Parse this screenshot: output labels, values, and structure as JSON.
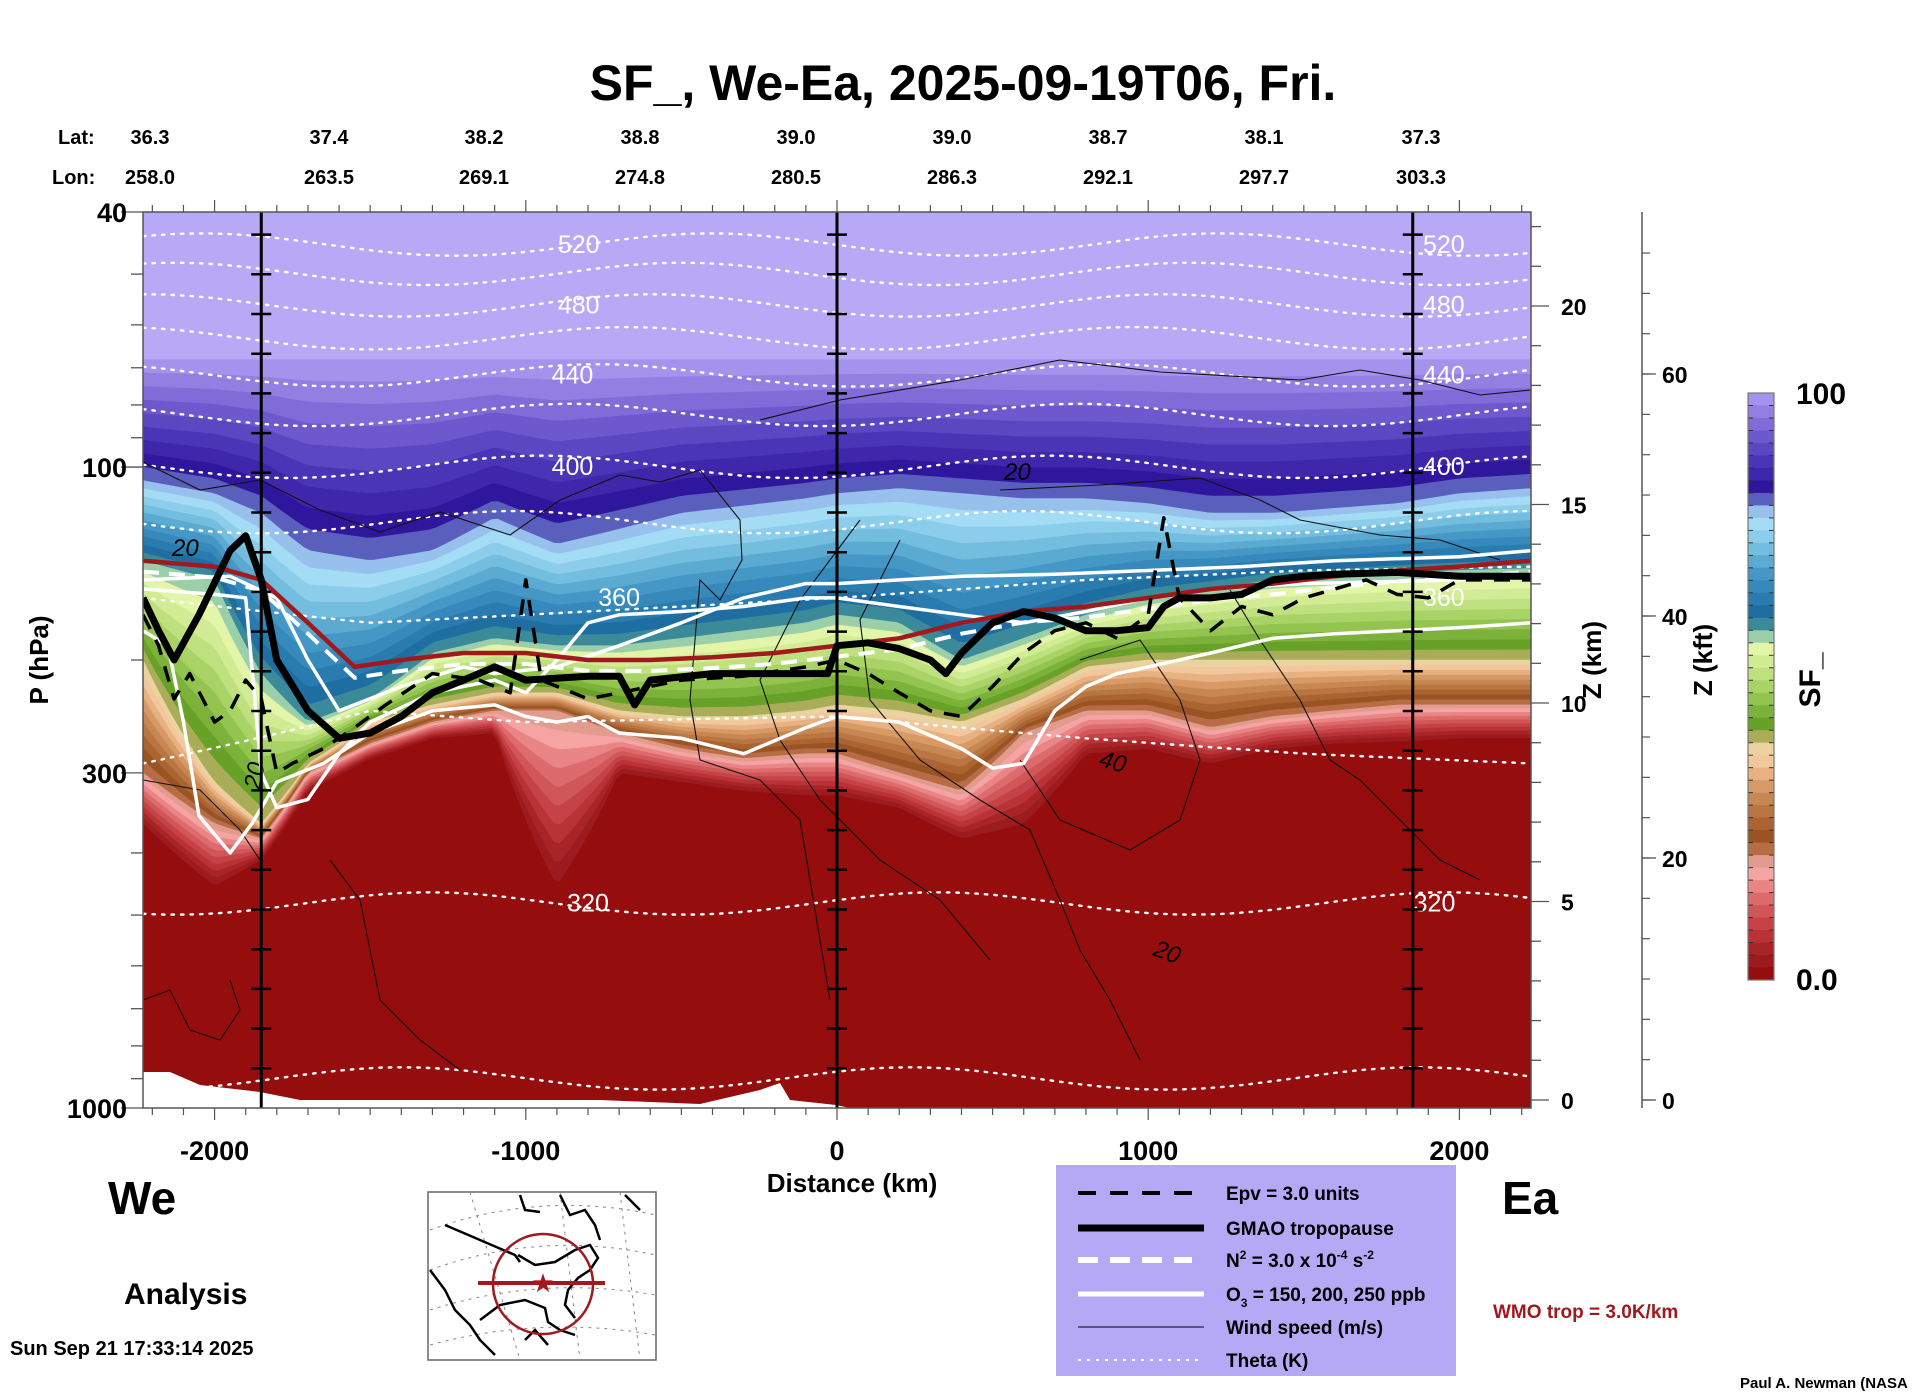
{
  "chart_data": {
    "type": "heatmap",
    "title": "SF_, We-Ea, 2025-09-19T06, Fri.",
    "xlabel": "Distance (km)",
    "ylabel": "P (hPa)",
    "y2label": "Z (km)",
    "y3label": "Z (kft)",
    "xlim": [
      -2230,
      2230
    ],
    "ylim_hpa": [
      1000,
      40
    ],
    "y_scale": "log",
    "x_ticks": [
      -2000,
      -1000,
      0,
      1000,
      2000
    ],
    "y_ticks_hpa": [
      40,
      100,
      300,
      1000
    ],
    "z_km_ticks": [
      0,
      5,
      10,
      15,
      20
    ],
    "z_kft_ticks": [
      0,
      20,
      40,
      60
    ],
    "section_markers_km": [
      -1850,
      0,
      1850
    ],
    "lat_label": "Lat:",
    "lon_label": "Lon:",
    "lat": [
      "36.3",
      "37.4",
      "38.2",
      "38.8",
      "39.0",
      "39.0",
      "38.7",
      "38.1",
      "37.3"
    ],
    "lon": [
      "258.0",
      "263.5",
      "269.1",
      "274.8",
      "280.5",
      "286.3",
      "292.1",
      "297.7",
      "303.3"
    ],
    "colorbar": {
      "label": "SF_",
      "min": 0.0,
      "max": 100,
      "min_label": "0.0",
      "max_label": "100",
      "colors_top_to_bottom": [
        "#a493ec",
        "#917fe2",
        "#7f6cd8",
        "#6d59cd",
        "#5c47c3",
        "#4b35b7",
        "#3e27ab",
        "#2f179d",
        "#5a5fbe",
        "#97c1ec",
        "#a3dcf4",
        "#8ccdeb",
        "#73bddf",
        "#5aaad2",
        "#4598c6",
        "#3689bb",
        "#2a7cb0",
        "#1f6ea2",
        "#3b8a9a",
        "#9bcfaa",
        "#e2f5a8",
        "#d1ec94",
        "#bfe07f",
        "#a9d366",
        "#93c44f",
        "#7cb23a",
        "#68a128",
        "#a9ad58",
        "#ead3a0",
        "#f2c79b",
        "#e7b181",
        "#d79a67",
        "#c78752",
        "#b97542",
        "#aa6432",
        "#9a5424",
        "#b86c46",
        "#e29c8e",
        "#f5a3a3",
        "#ea8586",
        "#dd6a6d",
        "#d05658",
        "#c54346",
        "#b83236",
        "#a92427",
        "#9b1b1e",
        "#960d0e"
      ]
    },
    "field_layers_pressure_hPa": {
      "description": "Approximate SF_ layer boundaries along section (x km → pressure hPa)",
      "x": [
        -2230,
        -2000,
        -1850,
        -1700,
        -1500,
        -1300,
        -1100,
        -900,
        -700,
        -500,
        -300,
        -100,
        0,
        200,
        400,
        600,
        800,
        1000,
        1200,
        1400,
        1600,
        1800,
        2000,
        2230
      ],
      "top_of_purple": [
        68,
        68,
        68,
        68,
        68,
        68,
        68,
        68,
        68,
        68,
        68,
        68,
        68,
        68,
        68,
        68,
        68,
        68,
        68,
        68,
        68,
        68,
        68,
        68
      ],
      "bottom_of_dark_blue": [
        105,
        110,
        118,
        135,
        140,
        135,
        120,
        132,
        125,
        118,
        115,
        112,
        110,
        108,
        110,
        112,
        112,
        114,
        118,
        118,
        116,
        114,
        110,
        108
      ],
      "bottom_of_teal": [
        140,
        150,
        210,
        250,
        230,
        195,
        185,
        190,
        190,
        185,
        180,
        175,
        170,
        175,
        200,
        185,
        170,
        160,
        155,
        150,
        148,
        146,
        145,
        144
      ],
      "bottom_of_green": [
        200,
        310,
        360,
        290,
        250,
        235,
        225,
        225,
        240,
        245,
        245,
        240,
        235,
        240,
        250,
        230,
        205,
        200,
        200,
        200,
        200,
        200,
        200,
        200
      ],
      "bottom_of_tan": [
        300,
        360,
        380,
        300,
        270,
        250,
        240,
        240,
        260,
        275,
        285,
        280,
        280,
        300,
        320,
        260,
        240,
        240,
        255,
        245,
        240,
        235,
        235,
        235
      ],
      "bottom_of_pink": [
        360,
        450,
        410,
        320,
        285,
        265,
        260,
        450,
        300,
        310,
        320,
        325,
        325,
        340,
        380,
        360,
        280,
        275,
        290,
        275,
        270,
        268,
        265,
        265
      ]
    },
    "theta_isentropes_K": [
      {
        "value": 520,
        "labeled": true,
        "p_hPa": 45
      },
      {
        "value": 500,
        "labeled": false,
        "p_hPa": 50
      },
      {
        "value": 480,
        "labeled": true,
        "p_hPa": 56
      },
      {
        "value": 460,
        "labeled": false,
        "p_hPa": 63
      },
      {
        "value": 440,
        "labeled": true,
        "p_hPa": 72
      },
      {
        "value": 420,
        "labeled": false,
        "p_hPa": 83
      },
      {
        "value": 400,
        "labeled": true,
        "p_hPa": 100
      },
      {
        "value": 380,
        "labeled": false,
        "p_hPa": 122
      },
      {
        "value": 360,
        "labeled": true,
        "p_hPa": 160
      },
      {
        "value": 340,
        "labeled": false,
        "p_hPa": 275
      },
      {
        "value": 320,
        "labeled": true,
        "p_hPa": 480
      },
      {
        "value": 300,
        "labeled": false,
        "p_hPa": 900
      }
    ],
    "wind_speed_labels_ms": [
      20,
      20,
      40,
      20,
      20
    ],
    "legend": {
      "placement": "bottom-center",
      "entries": [
        {
          "label": "Epv = 3.0 units",
          "style": "black-dashed"
        },
        {
          "label": "GMAO tropopause",
          "style": "black-thick"
        },
        {
          "label": "N² = 3.0 x 10⁻⁴ s⁻²",
          "style": "white-dashed"
        },
        {
          "label": "O₃ = 150, 200, 250 ppb",
          "style": "white-solid"
        },
        {
          "label": "Wind speed (m/s)",
          "style": "black-thin"
        },
        {
          "label": "Theta (K)",
          "style": "white-dotted"
        }
      ],
      "background": "#b5a8f5"
    },
    "wmo_trop_label": "WMO trop = 3.0K/km",
    "wmo_trop_color": "#a0191d",
    "west_label": "We",
    "east_label": "Ea"
  },
  "footer": {
    "mode": "Analysis",
    "timestamp": "Sun Sep 21 17:33:14 2025",
    "credit": "Paul A. Newman (NASA"
  },
  "legend_text": {
    "epv": "Epv = 3.0 units",
    "gmao": "GMAO tropopause",
    "n2_base": "N",
    "n2_sup": "2",
    "n2_mid": " = 3.0 x 10",
    "n2_exp": "-4",
    "n2_unit": " s",
    "n2_unit_exp": "-2",
    "o3_base": "O",
    "o3_sub": "3",
    "o3_rest": " = 150, 200, 250 ppb",
    "wind": "Wind speed (m/s)",
    "theta": "Theta (K)"
  }
}
